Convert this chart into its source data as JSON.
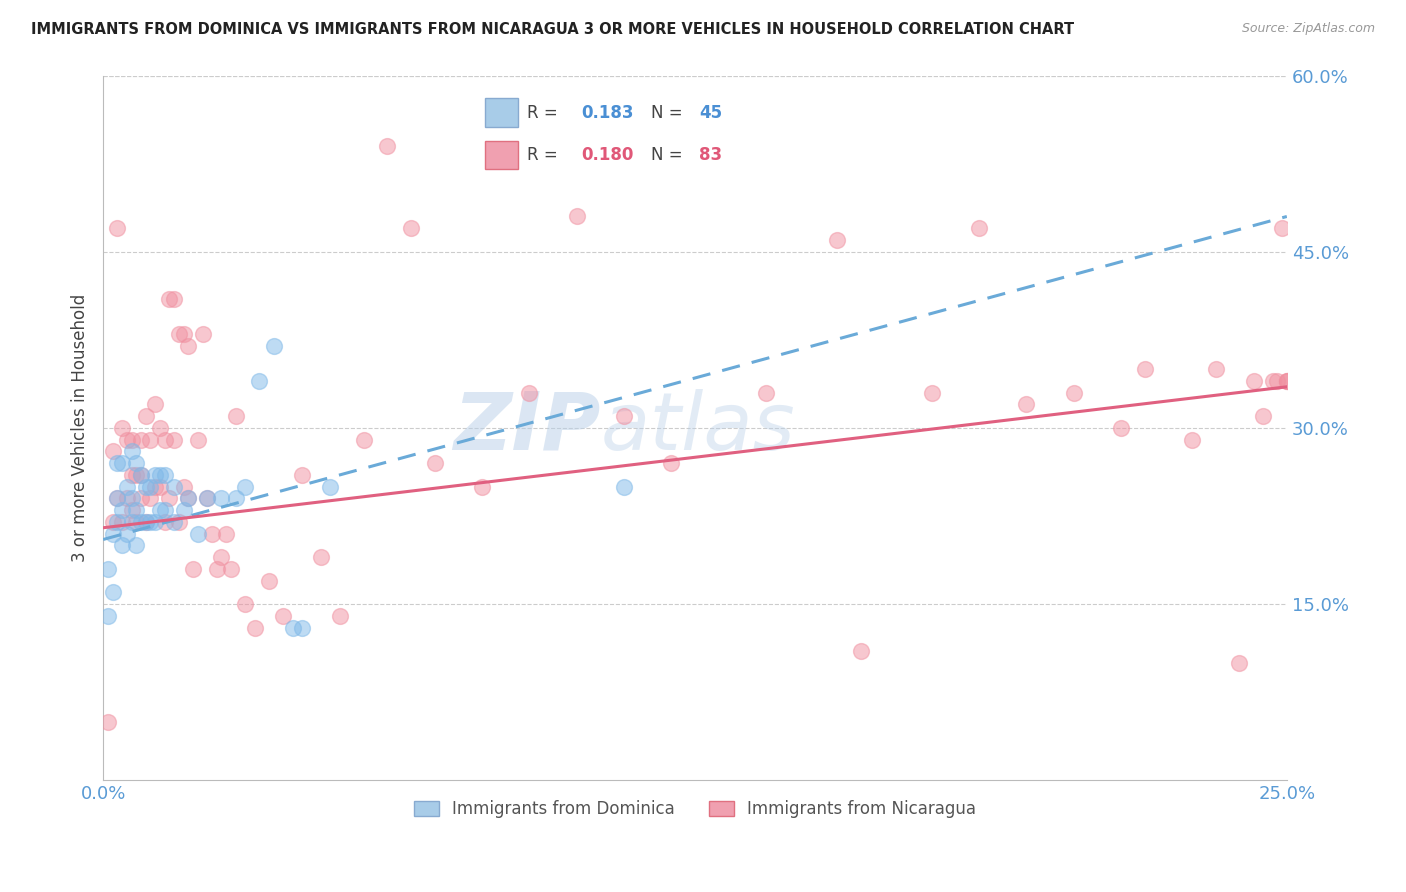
{
  "title": "IMMIGRANTS FROM DOMINICA VS IMMIGRANTS FROM NICARAGUA 3 OR MORE VEHICLES IN HOUSEHOLD CORRELATION CHART",
  "source": "Source: ZipAtlas.com",
  "ylabel": "3 or more Vehicles in Household",
  "x_min": 0.0,
  "x_max": 0.25,
  "y_min": 0.0,
  "y_max": 0.6,
  "x_ticks": [
    0.0,
    0.05,
    0.1,
    0.15,
    0.2,
    0.25
  ],
  "x_tick_labels": [
    "0.0%",
    "",
    "",
    "",
    "",
    "25.0%"
  ],
  "y_ticks_right": [
    0.15,
    0.3,
    0.45,
    0.6
  ],
  "y_tick_labels_right": [
    "15.0%",
    "30.0%",
    "45.0%",
    "60.0%"
  ],
  "dominica_color": "#7eb8e8",
  "nicaragua_color": "#f090a0",
  "dominica_line_color": "#6aaad8",
  "nicaragua_line_color": "#e06080",
  "dominica_R": "0.183",
  "dominica_N": "45",
  "nicaragua_R": "0.180",
  "nicaragua_N": "83",
  "dom_intercept": 0.205,
  "dom_slope": 1.1,
  "nic_intercept": 0.215,
  "nic_slope": 0.48,
  "dominica_x": [
    0.001,
    0.001,
    0.002,
    0.002,
    0.003,
    0.003,
    0.003,
    0.004,
    0.004,
    0.004,
    0.005,
    0.005,
    0.006,
    0.006,
    0.006,
    0.007,
    0.007,
    0.007,
    0.008,
    0.008,
    0.009,
    0.009,
    0.01,
    0.01,
    0.011,
    0.011,
    0.012,
    0.012,
    0.013,
    0.013,
    0.015,
    0.015,
    0.017,
    0.018,
    0.02,
    0.022,
    0.025,
    0.028,
    0.03,
    0.033,
    0.036,
    0.04,
    0.042,
    0.048,
    0.11
  ],
  "dominica_y": [
    0.14,
    0.18,
    0.16,
    0.21,
    0.22,
    0.24,
    0.27,
    0.2,
    0.23,
    0.27,
    0.21,
    0.25,
    0.22,
    0.24,
    0.28,
    0.2,
    0.23,
    0.27,
    0.22,
    0.26,
    0.22,
    0.25,
    0.22,
    0.25,
    0.22,
    0.26,
    0.23,
    0.26,
    0.23,
    0.26,
    0.22,
    0.25,
    0.23,
    0.24,
    0.21,
    0.24,
    0.24,
    0.24,
    0.25,
    0.34,
    0.37,
    0.13,
    0.13,
    0.25,
    0.25
  ],
  "nicaragua_x": [
    0.001,
    0.002,
    0.002,
    0.003,
    0.003,
    0.004,
    0.004,
    0.005,
    0.005,
    0.006,
    0.006,
    0.006,
    0.007,
    0.007,
    0.008,
    0.008,
    0.008,
    0.009,
    0.009,
    0.01,
    0.01,
    0.011,
    0.011,
    0.012,
    0.012,
    0.013,
    0.013,
    0.014,
    0.014,
    0.015,
    0.015,
    0.016,
    0.016,
    0.017,
    0.017,
    0.018,
    0.018,
    0.019,
    0.02,
    0.021,
    0.022,
    0.023,
    0.024,
    0.025,
    0.026,
    0.027,
    0.028,
    0.03,
    0.032,
    0.035,
    0.038,
    0.042,
    0.046,
    0.05,
    0.055,
    0.06,
    0.065,
    0.07,
    0.08,
    0.09,
    0.1,
    0.11,
    0.12,
    0.14,
    0.155,
    0.16,
    0.175,
    0.185,
    0.195,
    0.205,
    0.215,
    0.22,
    0.23,
    0.235,
    0.24,
    0.243,
    0.245,
    0.247,
    0.248,
    0.249,
    0.25,
    0.25,
    0.25
  ],
  "nicaragua_y": [
    0.05,
    0.22,
    0.28,
    0.24,
    0.47,
    0.22,
    0.3,
    0.24,
    0.29,
    0.23,
    0.26,
    0.29,
    0.22,
    0.26,
    0.24,
    0.26,
    0.29,
    0.22,
    0.31,
    0.24,
    0.29,
    0.25,
    0.32,
    0.25,
    0.3,
    0.22,
    0.29,
    0.24,
    0.41,
    0.29,
    0.41,
    0.22,
    0.38,
    0.25,
    0.38,
    0.24,
    0.37,
    0.18,
    0.29,
    0.38,
    0.24,
    0.21,
    0.18,
    0.19,
    0.21,
    0.18,
    0.31,
    0.15,
    0.13,
    0.17,
    0.14,
    0.26,
    0.19,
    0.14,
    0.29,
    0.54,
    0.47,
    0.27,
    0.25,
    0.33,
    0.48,
    0.31,
    0.27,
    0.33,
    0.46,
    0.11,
    0.33,
    0.47,
    0.32,
    0.33,
    0.3,
    0.35,
    0.29,
    0.35,
    0.1,
    0.34,
    0.31,
    0.34,
    0.34,
    0.47,
    0.34,
    0.34,
    0.34
  ]
}
